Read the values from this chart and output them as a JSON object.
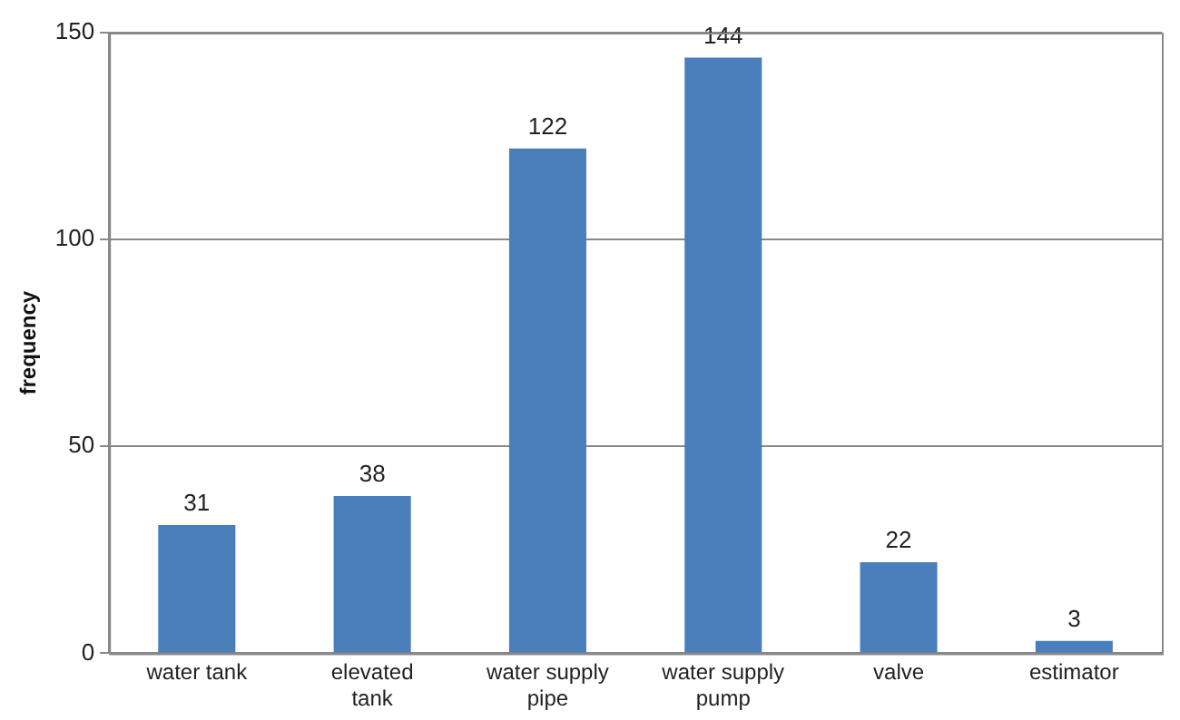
{
  "chart_data": {
    "type": "bar",
    "ylabel": "frequency",
    "categories": [
      "water tank",
      "elevated tank",
      "water supply pipe",
      "water supply pump",
      "valve",
      "estimator"
    ],
    "values": [
      31,
      38,
      122,
      144,
      22,
      3
    ],
    "color": "#4a7ebb",
    "ylim": [
      0,
      150
    ],
    "yticks": [
      0,
      50,
      100,
      150
    ],
    "grid": "y",
    "data_labels": true,
    "legend": false
  }
}
